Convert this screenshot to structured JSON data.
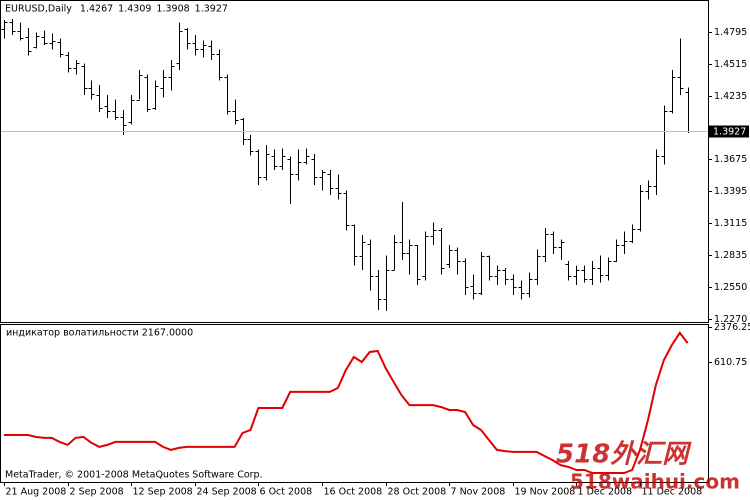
{
  "chart_data": [
    {
      "type": "ohlc",
      "title": "EURUSD,Daily",
      "categories": [
        "21 Aug 2008",
        null,
        null,
        null,
        null,
        null,
        null,
        null,
        "2 Sep 2008",
        null,
        null,
        null,
        null,
        null,
        null,
        null,
        "12 Sep 2008",
        null,
        null,
        null,
        null,
        null,
        null,
        null,
        "24 Sep 2008",
        null,
        null,
        null,
        null,
        null,
        null,
        null,
        "6 Oct 2008",
        null,
        null,
        null,
        null,
        null,
        null,
        null,
        "16 Oct 2008",
        null,
        null,
        null,
        null,
        null,
        null,
        null,
        "28 Oct 2008",
        null,
        null,
        null,
        null,
        null,
        null,
        null,
        "7 Nov 2008",
        null,
        null,
        null,
        null,
        null,
        null,
        null,
        "19 Nov 2008",
        null,
        null,
        null,
        null,
        null,
        null,
        null,
        "1 Dec 2008",
        null,
        null,
        null,
        null,
        null,
        null,
        null,
        "11 Dec 2008",
        null,
        null,
        null,
        null,
        null,
        null
      ],
      "series": [
        {
          "color": "#000000",
          "open": [
            1.482,
            1.488,
            1.48,
            1.475,
            1.466,
            1.475,
            1.47,
            1.471,
            1.459,
            1.448,
            1.45,
            1.43,
            1.424,
            1.414,
            1.41,
            1.405,
            1.4,
            1.42,
            1.44,
            1.413,
            1.43,
            1.44,
            1.452,
            1.482,
            1.47,
            1.465,
            1.467,
            1.46,
            1.44,
            1.41,
            1.403,
            1.385,
            1.375,
            1.352,
            1.37,
            1.362,
            1.368,
            1.355,
            1.365,
            1.368,
            1.352,
            1.355,
            1.342,
            1.338,
            1.31,
            1.282,
            1.293,
            1.265,
            1.245,
            1.27,
            1.295,
            1.285,
            1.292,
            1.265,
            1.3,
            1.305,
            1.275,
            1.288,
            1.278,
            1.256,
            1.25,
            1.282,
            1.265,
            1.27,
            1.262,
            1.255,
            1.25,
            1.262,
            1.282,
            1.302,
            1.29,
            1.275,
            1.265,
            1.27,
            1.262,
            1.272,
            1.266,
            1.278,
            1.292,
            1.296,
            1.306,
            1.34,
            1.344,
            1.37,
            1.41,
            1.44,
            1.4267
          ],
          "high": [
            1.49,
            1.491,
            1.488,
            1.483,
            1.479,
            1.481,
            1.478,
            1.474,
            1.462,
            1.455,
            1.452,
            1.437,
            1.433,
            1.424,
            1.42,
            1.411,
            1.424,
            1.446,
            1.442,
            1.437,
            1.446,
            1.455,
            1.488,
            1.483,
            1.477,
            1.472,
            1.472,
            1.464,
            1.442,
            1.42,
            1.404,
            1.389,
            1.376,
            1.38,
            1.376,
            1.377,
            1.37,
            1.376,
            1.377,
            1.372,
            1.358,
            1.358,
            1.354,
            1.34,
            1.31,
            1.301,
            1.297,
            1.27,
            1.283,
            1.301,
            1.33,
            1.297,
            1.292,
            1.304,
            1.312,
            1.307,
            1.292,
            1.29,
            1.28,
            1.266,
            1.286,
            1.283,
            1.274,
            1.272,
            1.266,
            1.261,
            1.268,
            1.288,
            1.307,
            1.304,
            1.297,
            1.278,
            1.274,
            1.274,
            1.278,
            1.283,
            1.281,
            1.297,
            1.304,
            1.31,
            1.345,
            1.349,
            1.376,
            1.415,
            1.446,
            1.474,
            1.4309
          ],
          "low": [
            1.474,
            1.477,
            1.472,
            1.459,
            1.465,
            1.468,
            1.464,
            1.457,
            1.444,
            1.442,
            1.424,
            1.42,
            1.409,
            1.404,
            1.402,
            1.389,
            1.398,
            1.42,
            1.409,
            1.411,
            1.422,
            1.428,
            1.446,
            1.464,
            1.459,
            1.457,
            1.455,
            1.437,
            1.407,
            1.398,
            1.38,
            1.371,
            1.345,
            1.349,
            1.358,
            1.358,
            1.328,
            1.349,
            1.363,
            1.345,
            1.34,
            1.336,
            1.332,
            1.305,
            1.274,
            1.27,
            1.252,
            1.235,
            1.234,
            1.27,
            1.279,
            1.266,
            1.257,
            1.261,
            1.292,
            1.266,
            1.272,
            1.266,
            1.248,
            1.244,
            1.248,
            1.261,
            1.257,
            1.257,
            1.248,
            1.244,
            1.246,
            1.257,
            1.277,
            1.284,
            1.279,
            1.261,
            1.257,
            1.259,
            1.257,
            1.259,
            1.261,
            1.277,
            1.284,
            1.294,
            1.304,
            1.332,
            1.336,
            1.363,
            1.408,
            1.424,
            1.3908
          ],
          "close": [
            1.488,
            1.48,
            1.474,
            1.463,
            1.476,
            1.47,
            1.472,
            1.46,
            1.448,
            1.452,
            1.43,
            1.425,
            1.413,
            1.41,
            1.405,
            1.398,
            1.42,
            1.442,
            1.412,
            1.432,
            1.44,
            1.45,
            1.48,
            1.47,
            1.465,
            1.468,
            1.46,
            1.44,
            1.41,
            1.402,
            1.385,
            1.375,
            1.352,
            1.372,
            1.362,
            1.37,
            1.355,
            1.365,
            1.37,
            1.352,
            1.356,
            1.342,
            1.338,
            1.31,
            1.282,
            1.295,
            1.265,
            1.245,
            1.27,
            1.295,
            1.285,
            1.292,
            1.262,
            1.3,
            1.305,
            1.272,
            1.288,
            1.278,
            1.255,
            1.25,
            1.282,
            1.265,
            1.27,
            1.262,
            1.255,
            1.25,
            1.262,
            1.282,
            1.302,
            1.29,
            1.295,
            1.265,
            1.27,
            1.262,
            1.272,
            1.266,
            1.278,
            1.292,
            1.296,
            1.306,
            1.34,
            1.344,
            1.37,
            1.41,
            1.44,
            1.43,
            1.3927
          ]
        }
      ],
      "ylim": [
        1.2252,
        1.4945
      ],
      "yticks": [
        {
          "value": 1.227,
          "label": "1.2270"
        },
        {
          "value": 1.255,
          "label": "1.2550"
        },
        1.2835,
        1.3115,
        1.3395,
        1.3675,
        1.4235,
        1.4515,
        1.4795
      ],
      "price_line_color": "#c0c0c0"
    },
    {
      "type": "line",
      "title": "индикатор волатильности 2167.0000",
      "series": [
        {
          "color": "#e00000",
          "values": [
            -3040,
            -3040,
            -3040,
            -3040,
            -3140,
            -3190,
            -3190,
            -3390,
            -3540,
            -3190,
            -3140,
            -3440,
            -3640,
            -3540,
            -3390,
            -3390,
            -3390,
            -3390,
            -3390,
            -3390,
            -3640,
            -3790,
            -3690,
            -3640,
            -3640,
            -3640,
            -3640,
            -3640,
            -3640,
            -3640,
            -2940,
            -2790,
            -1690,
            -1690,
            -1690,
            -1690,
            -880,
            -880,
            -880,
            -880,
            -880,
            -880,
            -680,
            220,
            870,
            620,
            1120,
            1170,
            320,
            -380,
            -1040,
            -1540,
            -1540,
            -1540,
            -1540,
            -1640,
            -1790,
            -1790,
            -1890,
            -2540,
            -2790,
            -3290,
            -3790,
            -3850,
            -3890,
            -3890,
            -3890,
            -3890,
            -4100,
            -4300,
            -4550,
            -4650,
            -4800,
            -4800,
            -4950,
            -4950,
            -4950,
            -4950,
            -4950,
            -4800,
            -3790,
            -2290,
            -530,
            720,
            1470,
            2080,
            1570
          ]
        }
      ],
      "ylim": [
        -5300,
        2376.25
      ],
      "yticks": [
        2376.25,
        610.75
      ],
      "annotation": "MetaTrader, © 2001-2008 MetaQuotes Software Corp."
    }
  ],
  "watermark": [
    "518外汇网",
    "518waihui.com"
  ]
}
